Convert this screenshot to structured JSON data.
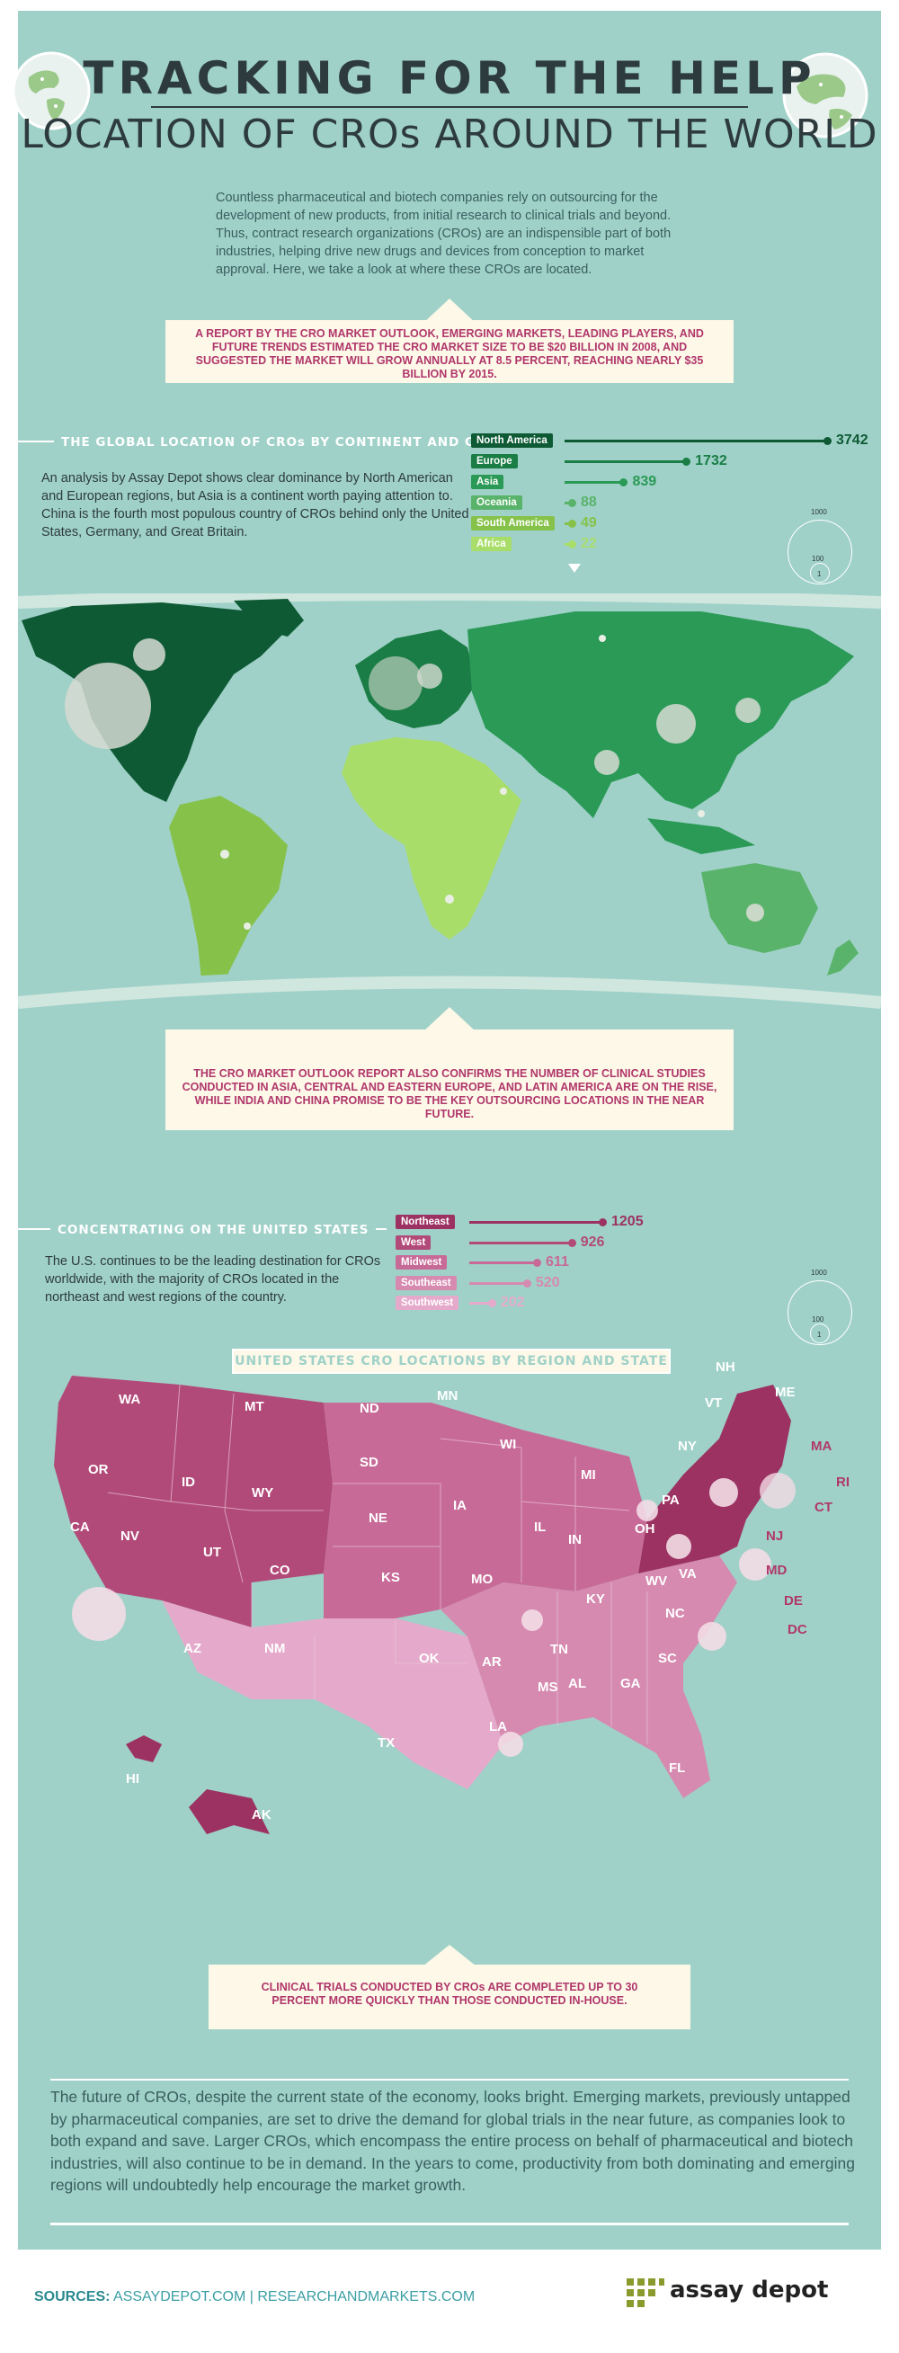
{
  "header": {
    "title_line1": "TRACKING FOR THE HELP",
    "title_line2": "LOCATION OF CROs AROUND THE WORLD"
  },
  "intro": "Countless pharmaceutical and biotech companies rely on outsourcing for the development of new products, from initial research to clinical trials and beyond. Thus, contract research organizations (CROs) are an indispensible part of both industries, helping drive new drugs and devices from conception to market approval. Here, we take a look at where these CROs are located.",
  "callout1": "A REPORT BY THE CRO MARKET OUTLOOK, EMERGING MARKETS, LEADING PLAYERS, AND FUTURE TRENDS ESTIMATED THE CRO MARKET SIZE TO BE $20 BILLION IN 2008, AND SUGGESTED THE MARKET WILL GROW ANNUALLY AT 8.5 PERCENT, REACHING NEARLY $35 BILLION BY 2015.",
  "global": {
    "heading": "THE GLOBAL LOCATION OF CROs BY CONTINENT AND COUNTRY",
    "text": "An analysis by Assay Depot shows clear dominance by North American and European regions, but Asia is a continent worth paying attention to. China is the fourth most populous country of CROs behind only the United States, Germany, and Great Britain.",
    "bars": [
      {
        "label": "North America",
        "value": "3742",
        "num": 3742,
        "color": "#0e5a35"
      },
      {
        "label": "Europe",
        "value": "1732",
        "num": 1732,
        "color": "#1a7d45"
      },
      {
        "label": "Asia",
        "value": "839",
        "num": 839,
        "color": "#2a9a56"
      },
      {
        "label": "Oceania",
        "value": "88",
        "num": 88,
        "color": "#5ab36b"
      },
      {
        "label": "South America",
        "value": "49",
        "num": 49,
        "color": "#86c24a"
      },
      {
        "label": "Africa",
        "value": "22",
        "num": 22,
        "color": "#a9dd6a"
      }
    ],
    "legend": {
      "large": "1000",
      "medium": "100",
      "small": "1"
    }
  },
  "callout2": "THE CRO MARKET OUTLOOK REPORT ALSO CONFIRMS THE NUMBER OF CLINICAL STUDIES CONDUCTED IN ASIA, CENTRAL AND EASTERN EUROPE, AND LATIN AMERICA ARE ON THE RISE, WHILE INDIA AND CHINA PROMISE TO BE THE KEY OUTSOURCING LOCATIONS IN THE NEAR FUTURE.",
  "us": {
    "heading": "CONCENTRATING ON THE UNITED STATES",
    "text": "The U.S. continues to be the leading destination for CROs worldwide, with the majority of CROs located in the northeast and west regions of the country.",
    "bars": [
      {
        "label": "Northeast",
        "value": "1205",
        "num": 1205,
        "color": "#9c3262"
      },
      {
        "label": "West",
        "value": "926",
        "num": 926,
        "color": "#b24a79"
      },
      {
        "label": "Midwest",
        "value": "611",
        "num": 611,
        "color": "#c76a97"
      },
      {
        "label": "Southeast",
        "value": "520",
        "num": 520,
        "color": "#d68ab0"
      },
      {
        "label": "Southwest",
        "value": "202",
        "num": 202,
        "color": "#e5aacb"
      }
    ],
    "legend": {
      "large": "1000",
      "medium": "100",
      "small": "1"
    },
    "map_title": "UNITED STATES CRO LOCATIONS BY REGION AND STATE",
    "states": [
      "WA",
      "OR",
      "CA",
      "NV",
      "ID",
      "MT",
      "WY",
      "UT",
      "CO",
      "AZ",
      "NM",
      "ND",
      "SD",
      "NE",
      "KS",
      "OK",
      "TX",
      "MN",
      "IA",
      "MO",
      "AR",
      "LA",
      "WI",
      "IL",
      "MI",
      "IN",
      "OH",
      "KY",
      "TN",
      "MS",
      "AL",
      "GA",
      "FL",
      "SC",
      "NC",
      "VA",
      "WV",
      "PA",
      "NY",
      "VT",
      "NH",
      "ME",
      "MA",
      "RI",
      "CT",
      "NJ",
      "MD",
      "DE",
      "DC",
      "HI",
      "AK"
    ]
  },
  "callout3": "CLINICAL TRIALS CONDUCTED BY CROs ARE COMPLETED UP TO 30 PERCENT MORE QUICKLY THAN THOSE CONDUCTED IN-HOUSE.",
  "conclusion": "The future of CROs, despite the current state of the economy, looks bright. Emerging markets, previously untapped by pharmaceutical companies, are set to drive the demand for global trials in the near future, as companies look to both expand and save. Larger CROs, which encompass the entire process on behalf of pharmaceutical and biotech industries, will also continue to be in demand. In the years to come, productivity from both dominating and emerging regions will undoubtedly help encourage the market growth.",
  "sources": {
    "label": "SOURCES:",
    "text": "ASSAYDEPOT.COM | RESEARCHANDMARKETS.COM"
  },
  "brand": "assay depot",
  "colors": {
    "panel": "#9fd1c8",
    "ribbon": "#fdf8e8",
    "accent": "#b0376b",
    "dark": "#2e3b3e"
  }
}
